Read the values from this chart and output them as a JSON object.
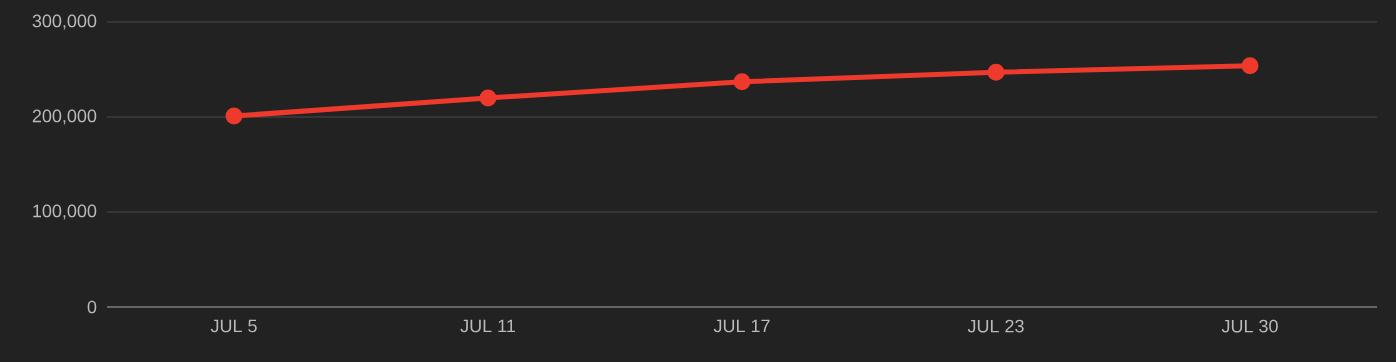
{
  "chart_data": {
    "type": "line",
    "categories": [
      "JUL 5",
      "JUL 11",
      "JUL 17",
      "JUL 23",
      "JUL 30"
    ],
    "series": [
      {
        "color": "#ee3a2c",
        "values": [
          201000,
          220000,
          237000,
          247000,
          254000
        ]
      }
    ],
    "ylim": [
      0,
      300000
    ],
    "yticks": [
      {
        "value": 0,
        "label": "0"
      },
      {
        "value": 100000,
        "label": "100,000"
      },
      {
        "value": 200000,
        "label": "200,000"
      },
      {
        "value": 300000,
        "label": "300,000"
      }
    ],
    "grid": "y",
    "marker": "circle",
    "line_style": "solid"
  }
}
